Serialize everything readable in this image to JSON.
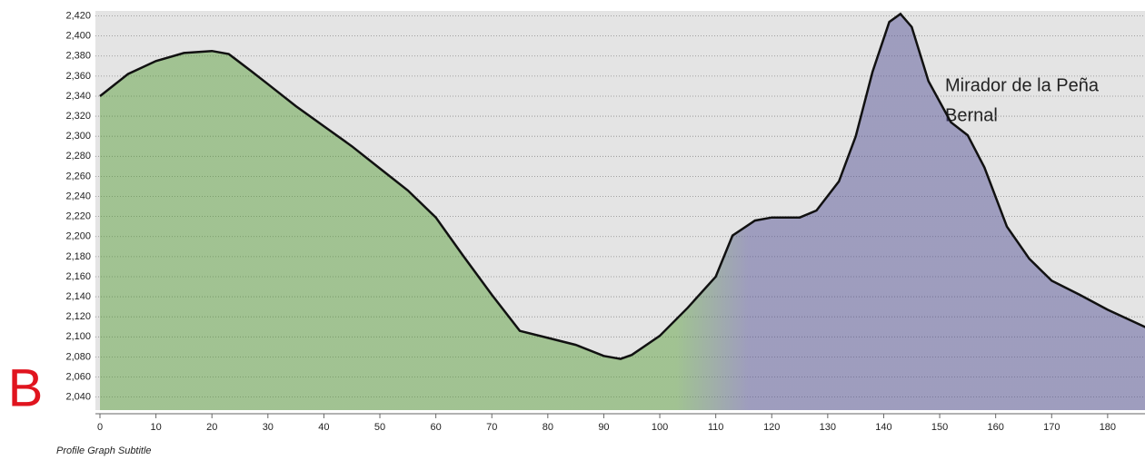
{
  "chart_data": {
    "type": "area",
    "panel_label": "B",
    "subtitle": "Profile Graph Subtitle",
    "annotation_lines": [
      "Mirador de la Peña",
      "Bernal"
    ],
    "x": [
      0,
      5,
      10,
      15,
      20,
      23,
      27,
      30,
      35,
      40,
      45,
      50,
      55,
      60,
      65,
      70,
      75,
      80,
      85,
      90,
      93,
      95,
      100,
      105,
      110,
      113,
      117,
      120,
      125,
      128,
      132,
      135,
      138,
      141,
      143,
      145,
      148,
      152,
      155,
      158,
      162,
      166,
      170,
      175,
      180,
      187
    ],
    "values": [
      2340,
      2362,
      2375,
      2383,
      2385,
      2382,
      2365,
      2352,
      2330,
      2310,
      2290,
      2268,
      2246,
      2219,
      2180,
      2142,
      2106,
      2099,
      2092,
      2081,
      2078,
      2082,
      2101,
      2129,
      2160,
      2201,
      2216,
      2219,
      2219,
      2226,
      2255,
      2300,
      2364,
      2414,
      2422,
      2409,
      2355,
      2314,
      2301,
      2269,
      2210,
      2178,
      2156,
      2142,
      2127,
      2109
    ],
    "color": "#111111",
    "fill_colors": [
      "#4f9a2e",
      "#4a4690"
    ],
    "xlim": [
      0,
      187
    ],
    "ylim": [
      2027,
      2425
    ],
    "xticks": [
      0,
      10,
      20,
      30,
      40,
      50,
      60,
      70,
      80,
      90,
      100,
      110,
      120,
      130,
      140,
      150,
      160,
      170,
      180
    ],
    "yticks": [
      {
        "value": 2040,
        "label": "2,040"
      },
      {
        "value": 2060,
        "label": "2,060"
      },
      {
        "value": 2080,
        "label": "2,080"
      },
      {
        "value": 2100,
        "label": "2,100"
      },
      {
        "value": 2120,
        "label": "2,120"
      },
      {
        "value": 2140,
        "label": "2,140"
      },
      {
        "value": 2160,
        "label": "2,160"
      },
      {
        "value": 2180,
        "label": "2,180"
      },
      {
        "value": 2200,
        "label": "2,200"
      },
      {
        "value": 2220,
        "label": "2,220"
      },
      {
        "value": 2240,
        "label": "2,240"
      },
      {
        "value": 2260,
        "label": "2,260"
      },
      {
        "value": 2280,
        "label": "2,280"
      },
      {
        "value": 2300,
        "label": "2,300"
      },
      {
        "value": 2320,
        "label": "2,320"
      },
      {
        "value": 2340,
        "label": "2,340"
      },
      {
        "value": 2360,
        "label": "2,360"
      },
      {
        "value": 2380,
        "label": "2,380"
      },
      {
        "value": 2400,
        "label": "2,400"
      },
      {
        "value": 2420,
        "label": "2,420"
      }
    ],
    "grid": true
  }
}
